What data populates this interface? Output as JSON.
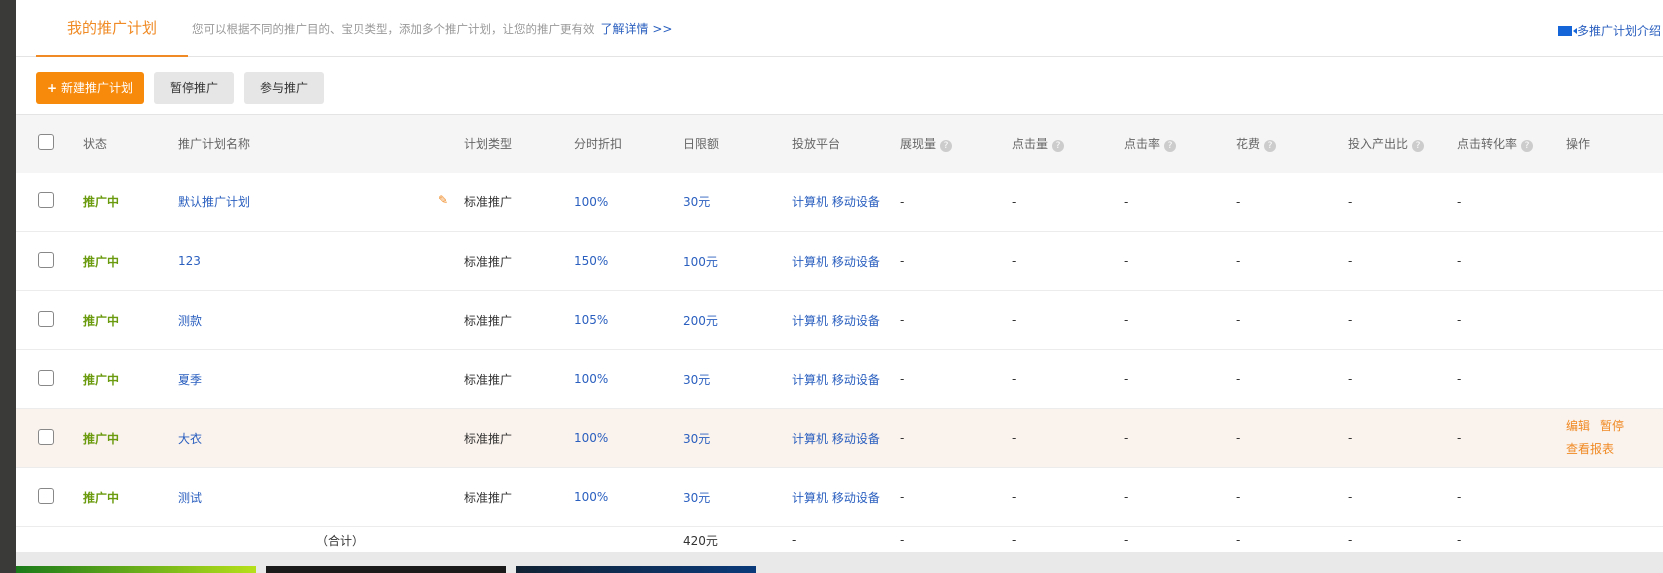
{
  "tabs": {
    "active": "我的推广计划",
    "description": "您可以根据不同的推广目的、宝贝类型，添加多个推广计划，让您的推广更有效",
    "learn_more": "了解详情 >>",
    "intro_link": "多推广计划介绍"
  },
  "toolbar": {
    "new_plan": "新建推广计划",
    "pause": "暂停推广",
    "join": "参与推广"
  },
  "table": {
    "headers": [
      "状态",
      "推广计划名称",
      "计划类型",
      "分时折扣",
      "日限额",
      "投放平台",
      "展现量",
      "点击量",
      "点击率",
      "花费",
      "投入产出比",
      "点击转化率",
      "操作"
    ],
    "help_icon": "?",
    "rows": [
      {
        "status": "推广中",
        "name": "默认推广计划",
        "type": "标准推广",
        "discount": "100%",
        "limit": "30元",
        "platform": "计算机 移动设备",
        "impr": "-",
        "clicks": "-",
        "ctr": "-",
        "cost": "-",
        "roi": "-",
        "cvr": "-"
      },
      {
        "status": "推广中",
        "name": "123",
        "type": "标准推广",
        "discount": "150%",
        "limit": "100元",
        "platform": "计算机 移动设备",
        "impr": "-",
        "clicks": "-",
        "ctr": "-",
        "cost": "-",
        "roi": "-",
        "cvr": "-"
      },
      {
        "status": "推广中",
        "name": "测款",
        "type": "标准推广",
        "discount": "105%",
        "limit": "200元",
        "platform": "计算机 移动设备",
        "impr": "-",
        "clicks": "-",
        "ctr": "-",
        "cost": "-",
        "roi": "-",
        "cvr": "-"
      },
      {
        "status": "推广中",
        "name": "夏季",
        "type": "标准推广",
        "discount": "100%",
        "limit": "30元",
        "platform": "计算机 移动设备",
        "impr": "-",
        "clicks": "-",
        "ctr": "-",
        "cost": "-",
        "roi": "-",
        "cvr": "-"
      },
      {
        "status": "推广中",
        "name": "大衣",
        "type": "标准推广",
        "discount": "100%",
        "limit": "30元",
        "platform": "计算机 移动设备",
        "impr": "-",
        "clicks": "-",
        "ctr": "-",
        "cost": "-",
        "roi": "-",
        "cvr": "-"
      },
      {
        "status": "推广中",
        "name": "测试",
        "type": "标准推广",
        "discount": "100%",
        "limit": "30元",
        "platform": "计算机 移动设备",
        "impr": "-",
        "clicks": "-",
        "ctr": "-",
        "cost": "-",
        "roi": "-",
        "cvr": "-"
      }
    ],
    "row_actions": {
      "edit": "编辑",
      "pause": "暂停",
      "report": "查看报表"
    },
    "total": {
      "label": "（合计）",
      "limit": "420元",
      "platform": "-",
      "impr": "-",
      "clicks": "-",
      "ctr": "-",
      "cost": "-",
      "roi": "-",
      "cvr": "-"
    }
  },
  "colors": {
    "accent": "#f08a24",
    "link": "#2a5fbf",
    "status": "#6a9a0e",
    "highlight_row": "#faf2ec"
  }
}
